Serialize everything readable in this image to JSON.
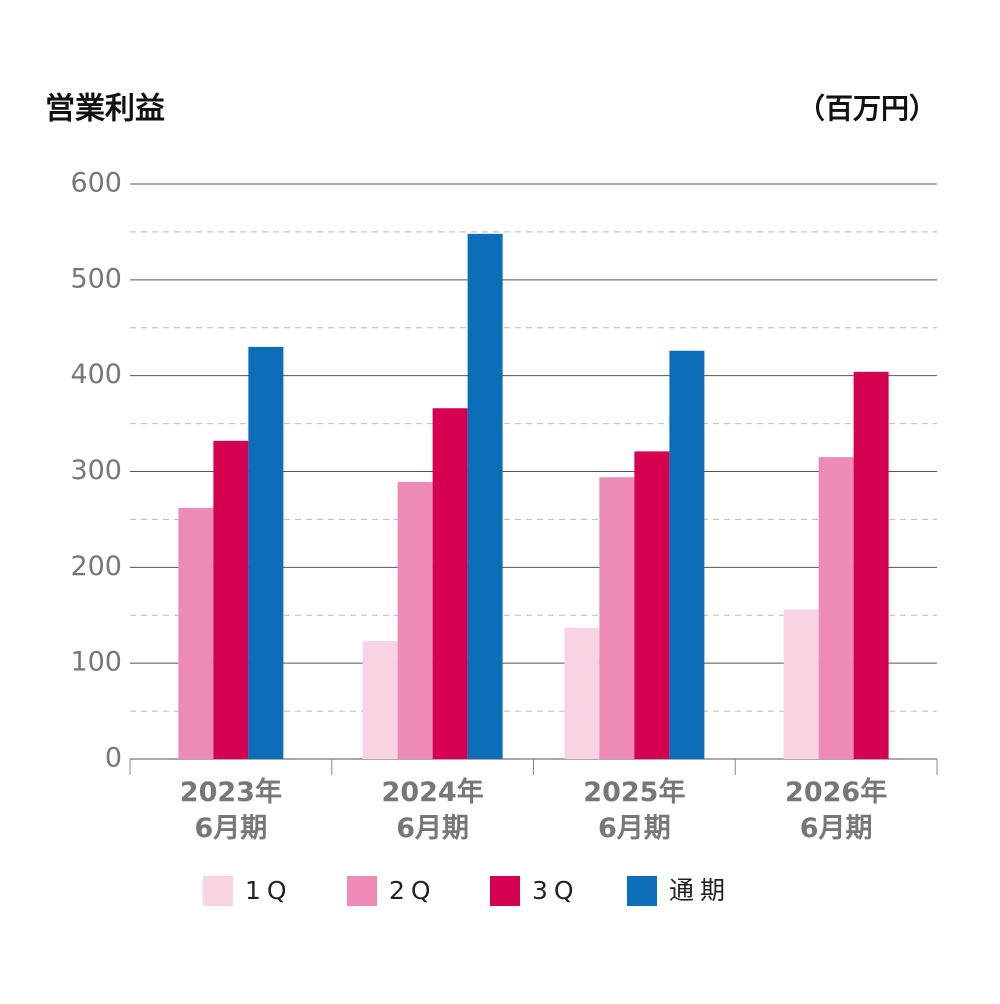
{
  "chart_data": {
    "type": "bar",
    "title": "営業利益",
    "unit": "（百万円）",
    "categories": [
      "2023年\n6月期",
      "2024年\n6月期",
      "2025年\n6月期",
      "2026年\n6月期"
    ],
    "series": [
      {
        "name": "1Q",
        "color": "#f8d3e3",
        "values": [
          null,
          123,
          137,
          156
        ]
      },
      {
        "name": "2Q",
        "color": "#ee8ab6",
        "values": [
          262,
          289,
          294,
          315
        ]
      },
      {
        "name": "3Q",
        "color": "#d60050",
        "values": [
          332,
          366,
          321,
          404
        ]
      },
      {
        "name": "通期",
        "color": "#0c6db8",
        "values": [
          430,
          548,
          426,
          null
        ]
      }
    ],
    "ylim": [
      0,
      600
    ],
    "yticks": [
      0,
      100,
      200,
      300,
      400,
      500,
      600
    ],
    "minor_yticks": [
      50,
      150,
      250,
      350,
      450,
      550
    ],
    "grid": true,
    "legend": "bottom"
  }
}
